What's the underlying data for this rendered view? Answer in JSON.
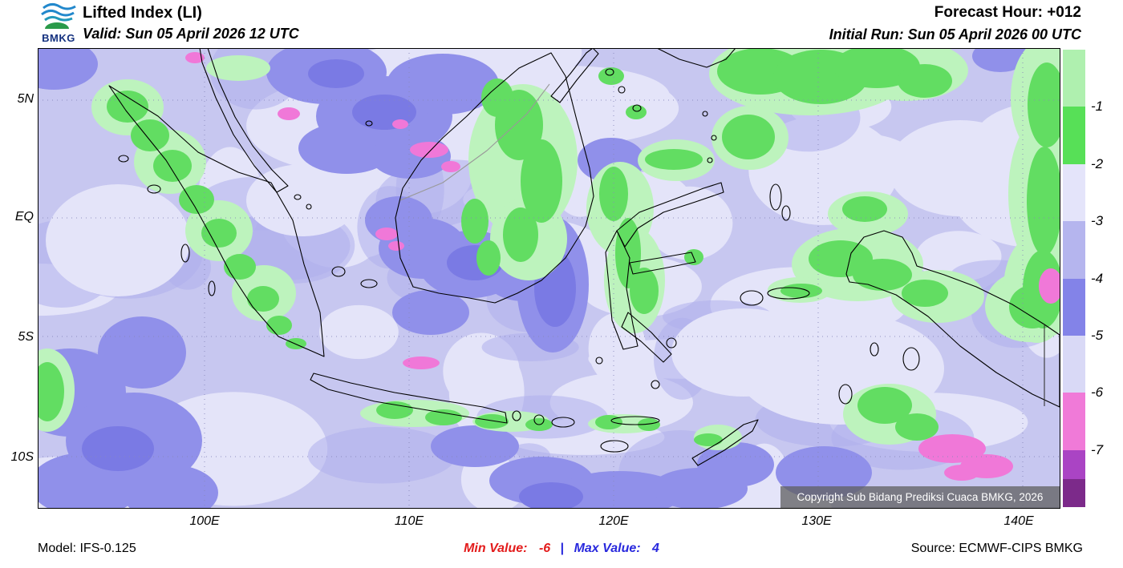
{
  "header": {
    "logo_text": "BMKG",
    "title": "Lifted Index (LI)",
    "valid": "Valid: Sun 05 April 2026 12 UTC",
    "forecast_hour": "Forecast Hour: +012",
    "initial_run": "Initial Run: Sun 05 April 2026 00 UTC"
  },
  "map": {
    "lat_ticks": [
      "5N",
      "EQ",
      "5S",
      "10S"
    ],
    "lon_ticks": [
      "100E",
      "110E",
      "120E",
      "130E",
      "140E"
    ],
    "copyright": "Copyright Sub Bidang Prediksi Cuaca BMKG, 2026"
  },
  "legend": {
    "labels": [
      "-1",
      "-2",
      "-3",
      "-4",
      "-5",
      "-6",
      "-7"
    ],
    "colors": [
      "#aff0af",
      "#57e057",
      "#e4e4fa",
      "#b5b5ee",
      "#8383e8",
      "#d9d9f6",
      "#f07ad8",
      "#aa44c4",
      "#7c2a8a"
    ]
  },
  "palette": {
    "base": "#c7c7f0",
    "pale": "#e4e4f9",
    "soft": "#aeaeec",
    "mid": "#9090ea",
    "dark": "#7a7ae4",
    "green": "#62dd62",
    "palegreen": "#bdf3bd",
    "pink": "#f078d8"
  },
  "footer": {
    "model": "Model: IFS-0.125",
    "min_label": "Min Value:",
    "min_value": "-6",
    "separator": "|",
    "max_label": "Max Value:",
    "max_value": "4",
    "source": "Source: ECMWF-CIPS BMKG"
  }
}
